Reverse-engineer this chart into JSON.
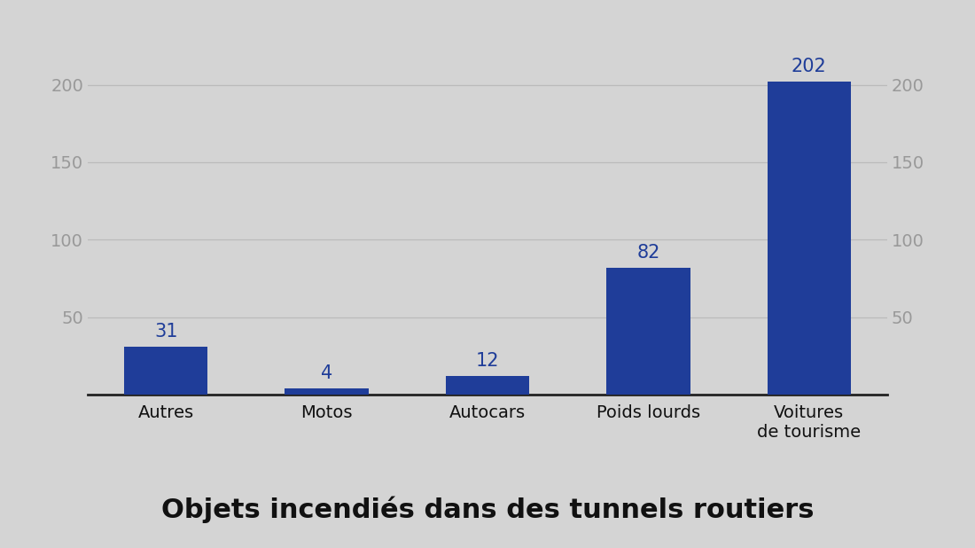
{
  "categories": [
    "Autres",
    "Motos",
    "Autocars",
    "Poids lourds",
    "Voitures\nde tourisme"
  ],
  "values": [
    31,
    4,
    12,
    82,
    202
  ],
  "bar_color": "#1f3d99",
  "label_color": "#1f3d99",
  "background_color": "#d4d4d4",
  "title": "Objets incendiés dans des tunnels routiers",
  "title_fontsize": 22,
  "title_fontweight": "bold",
  "title_color": "#111111",
  "yticks": [
    50,
    100,
    150,
    200
  ],
  "ylim": [
    0,
    230
  ],
  "tick_color": "#999999",
  "grid_color": "#bbbbbb",
  "value_fontsize": 15,
  "xticklabel_fontsize": 14,
  "bar_width": 0.52
}
